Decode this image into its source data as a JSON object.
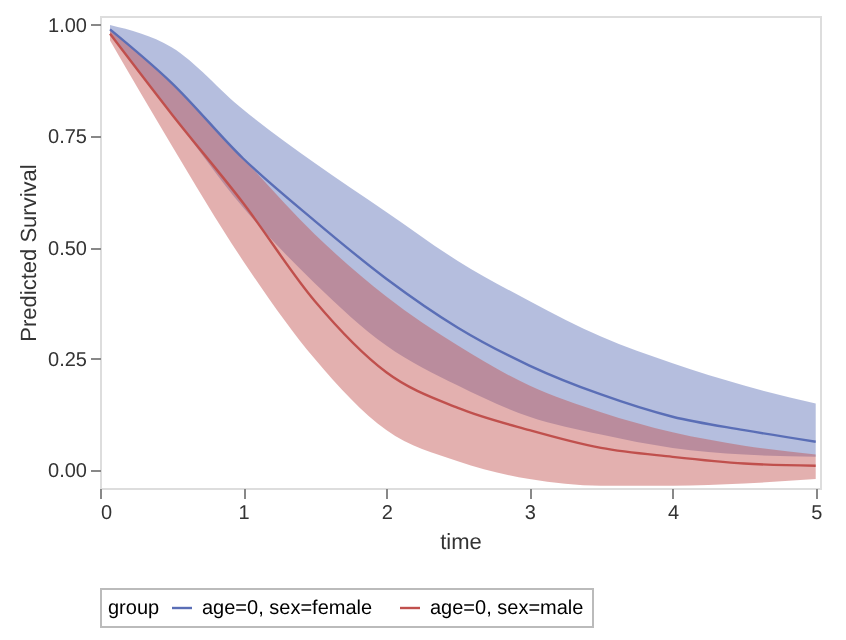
{
  "chart_data": {
    "type": "line",
    "xlabel": "time",
    "ylabel": "Predicted Survival",
    "legend_title": "group",
    "legend": "bottom",
    "grid": false,
    "marker": "none",
    "line_style": "solid",
    "x": [
      0.07,
      0.5,
      1,
      1.5,
      2,
      2.5,
      3,
      3.5,
      4,
      4.5,
      5
    ],
    "xlim": [
      0,
      5.03
    ],
    "xticks": [
      0,
      1,
      2,
      3,
      4,
      5
    ],
    "ylim": [
      -0.04,
      1.02
    ],
    "yticks": [
      {
        "value": 0,
        "label": "0.00"
      },
      {
        "value": 0.25,
        "label": "0.25"
      },
      {
        "value": 0.5,
        "label": "0.50"
      },
      {
        "value": 0.75,
        "label": "0.75"
      },
      {
        "value": 1,
        "label": "1.00"
      }
    ],
    "series": [
      {
        "name": "age=0, sex=female",
        "color": "#5a6eb6",
        "values": [
          0.99,
          0.87,
          0.7,
          0.56,
          0.43,
          0.32,
          0.235,
          0.17,
          0.12,
          0.09,
          0.064
        ],
        "lower": [
          0.98,
          0.8,
          0.59,
          0.42,
          0.28,
          0.19,
          0.12,
          0.08,
          0.05,
          0.035,
          0.03
        ],
        "upper": [
          1.0,
          0.95,
          0.81,
          0.69,
          0.58,
          0.47,
          0.38,
          0.3,
          0.24,
          0.19,
          0.15
        ]
      },
      {
        "name": "age=0, sex=male",
        "color": "#c0504d",
        "values": [
          0.98,
          0.8,
          0.6,
          0.38,
          0.22,
          0.14,
          0.09,
          0.05,
          0.03,
          0.015,
          0.01
        ],
        "lower": [
          0.965,
          0.73,
          0.47,
          0.25,
          0.09,
          0.02,
          -0.02,
          -0.035,
          -0.035,
          -0.03,
          -0.02
        ],
        "upper": [
          0.99,
          0.87,
          0.7,
          0.53,
          0.39,
          0.28,
          0.19,
          0.13,
          0.085,
          0.055,
          0.035
        ]
      }
    ]
  }
}
